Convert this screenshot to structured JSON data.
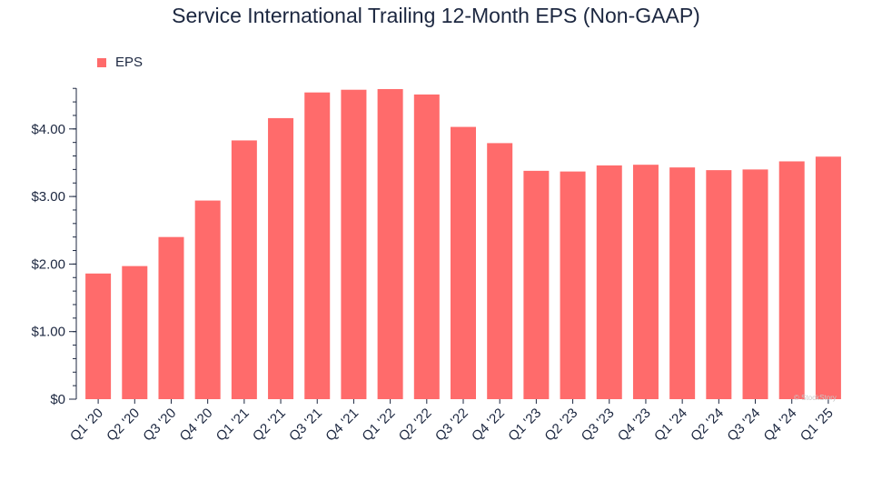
{
  "chart_data": {
    "type": "bar",
    "title": "Service International Trailing 12-Month EPS (Non-GAAP)",
    "legend": {
      "position": "top-left",
      "entries": [
        "EPS"
      ]
    },
    "categories": [
      "Q1 '20",
      "Q2 '20",
      "Q3 '20",
      "Q4 '20",
      "Q1 '21",
      "Q2 '21",
      "Q3 '21",
      "Q4 '21",
      "Q1 '22",
      "Q2 '22",
      "Q3 '22",
      "Q4 '22",
      "Q1 '23",
      "Q2 '23",
      "Q3 '23",
      "Q4 '23",
      "Q1 '24",
      "Q2 '24",
      "Q3 '24",
      "Q4 '24",
      "Q1 '25"
    ],
    "series": [
      {
        "name": "EPS",
        "color": "#ff6b6b",
        "values": [
          1.86,
          1.97,
          2.4,
          2.94,
          3.83,
          4.16,
          4.54,
          4.58,
          4.59,
          4.51,
          4.03,
          3.79,
          3.38,
          3.37,
          3.46,
          3.47,
          3.43,
          3.39,
          3.4,
          3.52,
          3.59
        ]
      }
    ],
    "yticks": [
      "$0",
      "$1.00",
      "$2.00",
      "$3.00",
      "$4.00"
    ],
    "ylim": [
      0,
      4.6
    ],
    "grid": false,
    "xlabel": "",
    "ylabel": ""
  },
  "watermark": "© StockStory"
}
